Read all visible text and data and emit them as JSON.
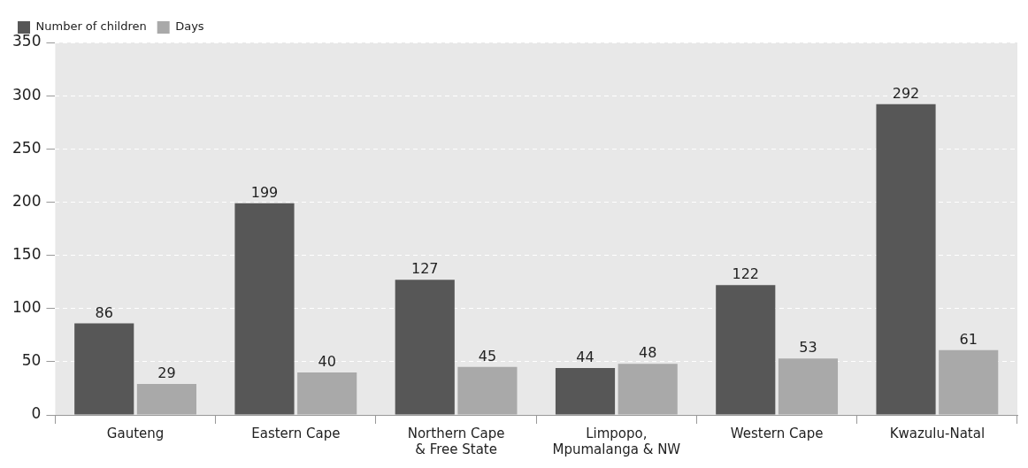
{
  "chart_data": {
    "type": "bar",
    "categories": [
      "Gauteng",
      "Eastern Cape",
      "Northern Cape & Free State",
      "Limpopo, Mpumalanga & NW",
      "Western Cape",
      "Kwazulu-Natal"
    ],
    "series": [
      {
        "name": "Number of children",
        "color": "#575757",
        "values": [
          86,
          199,
          127,
          44,
          122,
          292
        ]
      },
      {
        "name": "Days",
        "color": "#a9a9a9",
        "values": [
          29,
          40,
          45,
          48,
          53,
          61
        ]
      }
    ],
    "ylim": [
      0,
      350
    ],
    "yticks": [
      0,
      50,
      100,
      150,
      200,
      250,
      300,
      350
    ],
    "grid": "y",
    "legend": "top left",
    "data_labels": true
  }
}
